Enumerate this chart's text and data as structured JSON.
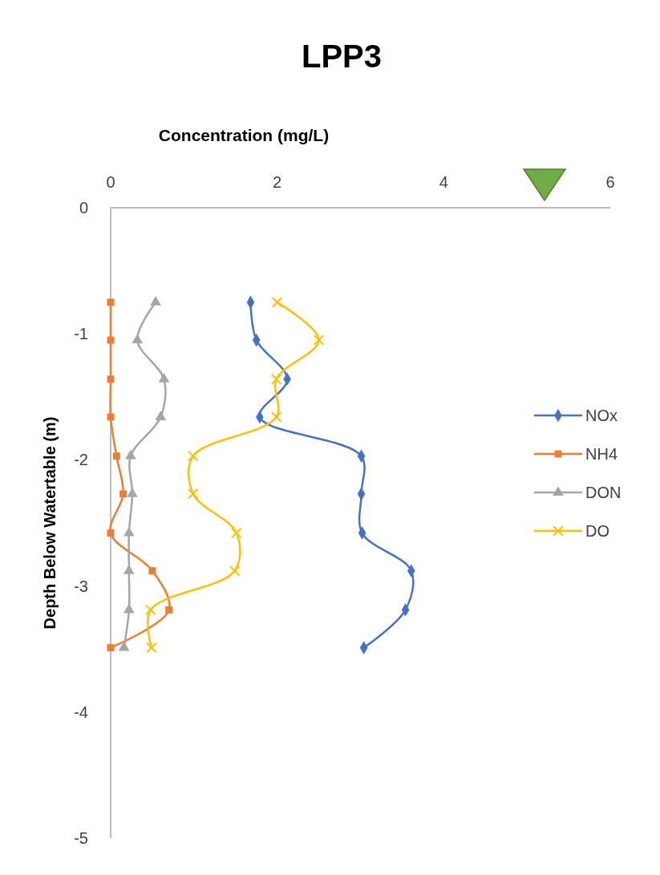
{
  "chart_data": {
    "type": "line",
    "title": "LPP3",
    "xlabel": "Concentration (mg/L)",
    "ylabel": "Depth Below Watertable (m)",
    "xlim": [
      0,
      6
    ],
    "xticks": [
      0,
      2,
      4,
      6
    ],
    "ylim": [
      -5,
      0
    ],
    "yticks": [
      -5,
      -4,
      -3,
      -2,
      -1,
      0
    ],
    "legend": "right",
    "series": [
      {
        "name": "NOx",
        "color": "#4472c4",
        "marker": "diamond",
        "x": [
          1.68,
          1.75,
          2.12,
          1.79,
          3.01,
          3.01,
          3.02,
          3.61,
          3.54,
          3.04
        ],
        "values": [
          -0.75,
          -1.05,
          -1.36,
          -1.66,
          -1.97,
          -2.27,
          -2.58,
          -2.88,
          -3.19,
          -3.49
        ]
      },
      {
        "name": "NH4",
        "color": "#ed7d31",
        "marker": "square",
        "x": [
          0,
          0,
          0,
          0,
          0.07,
          0.15,
          0,
          0.5,
          0.7,
          0
        ],
        "values": [
          -0.75,
          -1.05,
          -1.36,
          -1.66,
          -1.97,
          -2.27,
          -2.58,
          -2.88,
          -3.19,
          -3.49
        ]
      },
      {
        "name": "DON",
        "color": "#a5a5a5",
        "marker": "triangle",
        "x": [
          0.54,
          0.32,
          0.64,
          0.6,
          0.24,
          0.26,
          0.22,
          0.22,
          0.22,
          0.16
        ],
        "values": [
          -0.75,
          -1.05,
          -1.36,
          -1.66,
          -1.97,
          -2.27,
          -2.58,
          -2.88,
          -3.19,
          -3.49
        ]
      },
      {
        "name": "DO",
        "color": "#ffc000",
        "marker": "cross",
        "x": [
          2,
          2.5,
          1.99,
          1.99,
          0.99,
          0.99,
          1.51,
          1.49,
          0.48,
          0.49
        ],
        "values": [
          -0.75,
          -1.05,
          -1.36,
          -1.66,
          -1.97,
          -2.27,
          -2.58,
          -2.88,
          -3.19,
          -3.49
        ]
      }
    ]
  }
}
